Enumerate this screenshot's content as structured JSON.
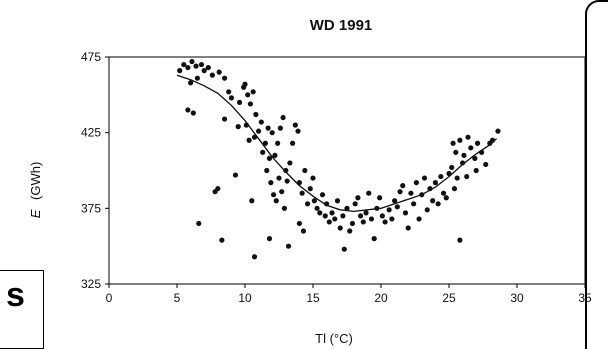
{
  "fragments": {
    "side_letter": "s"
  },
  "chart_data": {
    "type": "scatter",
    "title": "WD 1991",
    "xlabel": "Tl (°C)",
    "ylabel_italic": "E",
    "ylabel_unit": "(GWh)",
    "xlim": [
      0,
      35
    ],
    "ylim": [
      325,
      475
    ],
    "xticks": [
      "0",
      "5",
      "10",
      "15",
      "20",
      "25",
      "30",
      "35"
    ],
    "yticks": [
      "325",
      "375",
      "425",
      "475"
    ],
    "grid": false,
    "colors": {
      "points": "#111111",
      "line": "#111111",
      "axes": "#000000"
    },
    "points": [
      [
        5.2,
        466
      ],
      [
        5.5,
        470
      ],
      [
        5.8,
        468
      ],
      [
        6.1,
        472
      ],
      [
        6.4,
        469
      ],
      [
        6.8,
        470
      ],
      [
        7.0,
        466
      ],
      [
        7.3,
        468
      ],
      [
        7.6,
        463
      ],
      [
        8.1,
        465
      ],
      [
        8.5,
        461
      ],
      [
        6.0,
        458
      ],
      [
        6.5,
        461
      ],
      [
        5.8,
        440
      ],
      [
        6.2,
        438
      ],
      [
        6.6,
        365
      ],
      [
        7.8,
        386
      ],
      [
        8.0,
        388
      ],
      [
        8.3,
        354
      ],
      [
        8.5,
        434
      ],
      [
        8.8,
        452
      ],
      [
        9.0,
        448
      ],
      [
        9.3,
        397
      ],
      [
        9.6,
        445
      ],
      [
        9.9,
        455
      ],
      [
        10.0,
        457
      ],
      [
        10.2,
        450
      ],
      [
        10.4,
        444
      ],
      [
        10.6,
        452
      ],
      [
        10.8,
        437
      ],
      [
        9.5,
        429
      ],
      [
        10.1,
        430
      ],
      [
        10.3,
        420
      ],
      [
        10.7,
        422
      ],
      [
        11.0,
        426
      ],
      [
        11.2,
        432
      ],
      [
        11.3,
        412
      ],
      [
        11.5,
        418
      ],
      [
        11.7,
        428
      ],
      [
        11.8,
        408
      ],
      [
        12.0,
        425
      ],
      [
        12.2,
        410
      ],
      [
        12.4,
        418
      ],
      [
        12.5,
        395
      ],
      [
        12.6,
        428
      ],
      [
        12.8,
        435
      ],
      [
        13.0,
        400
      ],
      [
        13.1,
        393
      ],
      [
        13.3,
        405
      ],
      [
        13.5,
        418
      ],
      [
        13.7,
        430
      ],
      [
        13.9,
        426
      ],
      [
        14.0,
        392
      ],
      [
        14.2,
        385
      ],
      [
        14.4,
        400
      ],
      [
        14.6,
        378
      ],
      [
        14.8,
        388
      ],
      [
        15.0,
        395
      ],
      [
        11.6,
        400
      ],
      [
        11.9,
        392
      ],
      [
        12.1,
        384
      ],
      [
        12.3,
        380
      ],
      [
        12.7,
        386
      ],
      [
        12.9,
        375
      ],
      [
        10.5,
        380
      ],
      [
        10.7,
        343
      ],
      [
        11.8,
        355
      ],
      [
        13.2,
        350
      ],
      [
        14.0,
        365
      ],
      [
        14.3,
        360
      ],
      [
        15.1,
        380
      ],
      [
        15.3,
        375
      ],
      [
        15.5,
        372
      ],
      [
        15.7,
        384
      ],
      [
        15.9,
        370
      ],
      [
        16.0,
        378
      ],
      [
        16.2,
        366
      ],
      [
        16.4,
        372
      ],
      [
        16.6,
        368
      ],
      [
        16.8,
        380
      ],
      [
        17.0,
        362
      ],
      [
        17.2,
        370
      ],
      [
        17.3,
        348
      ],
      [
        17.5,
        375
      ],
      [
        17.7,
        360
      ],
      [
        17.9,
        365
      ],
      [
        18.1,
        378
      ],
      [
        18.3,
        382
      ],
      [
        18.5,
        370
      ],
      [
        18.7,
        366
      ],
      [
        18.9,
        372
      ],
      [
        19.1,
        385
      ],
      [
        19.3,
        368
      ],
      [
        19.5,
        355
      ],
      [
        19.7,
        375
      ],
      [
        19.9,
        382
      ],
      [
        20.1,
        370
      ],
      [
        20.3,
        366
      ],
      [
        20.6,
        374
      ],
      [
        20.8,
        368
      ],
      [
        21.0,
        380
      ],
      [
        21.2,
        376
      ],
      [
        21.4,
        386
      ],
      [
        21.6,
        390
      ],
      [
        21.8,
        372
      ],
      [
        22.0,
        362
      ],
      [
        22.2,
        385
      ],
      [
        22.4,
        378
      ],
      [
        22.6,
        392
      ],
      [
        22.8,
        368
      ],
      [
        23.0,
        384
      ],
      [
        23.2,
        395
      ],
      [
        23.4,
        374
      ],
      [
        23.6,
        388
      ],
      [
        23.8,
        380
      ],
      [
        24.0,
        392
      ],
      [
        24.2,
        378
      ],
      [
        24.4,
        396
      ],
      [
        24.6,
        385
      ],
      [
        24.8,
        382
      ],
      [
        25.0,
        398
      ],
      [
        25.2,
        402
      ],
      [
        25.4,
        388
      ],
      [
        25.6,
        395
      ],
      [
        25.8,
        354
      ],
      [
        26.0,
        405
      ],
      [
        25.3,
        418
      ],
      [
        25.5,
        412
      ],
      [
        25.8,
        420
      ],
      [
        26.1,
        410
      ],
      [
        26.4,
        422
      ],
      [
        26.6,
        415
      ],
      [
        26.9,
        408
      ],
      [
        27.1,
        418
      ],
      [
        27.4,
        412
      ],
      [
        27.7,
        404
      ],
      [
        28.0,
        418
      ],
      [
        28.2,
        420
      ],
      [
        28.6,
        426
      ],
      [
        26.3,
        396
      ],
      [
        27.0,
        400
      ]
    ],
    "fit_curve": [
      [
        5.0,
        463
      ],
      [
        6.0,
        460
      ],
      [
        7.0,
        456
      ],
      [
        8.0,
        451
      ],
      [
        9.0,
        443
      ],
      [
        10.0,
        433
      ],
      [
        11.0,
        421
      ],
      [
        12.0,
        409
      ],
      [
        13.0,
        399
      ],
      [
        14.0,
        390
      ],
      [
        15.0,
        383
      ],
      [
        16.0,
        377
      ],
      [
        17.0,
        374
      ],
      [
        18.0,
        373
      ],
      [
        19.0,
        374
      ],
      [
        20.0,
        375
      ],
      [
        21.0,
        378
      ],
      [
        22.0,
        381
      ],
      [
        23.0,
        384
      ],
      [
        24.0,
        389
      ],
      [
        25.0,
        396
      ],
      [
        26.0,
        404
      ],
      [
        27.0,
        411
      ],
      [
        28.0,
        417
      ],
      [
        28.5,
        421
      ]
    ]
  }
}
